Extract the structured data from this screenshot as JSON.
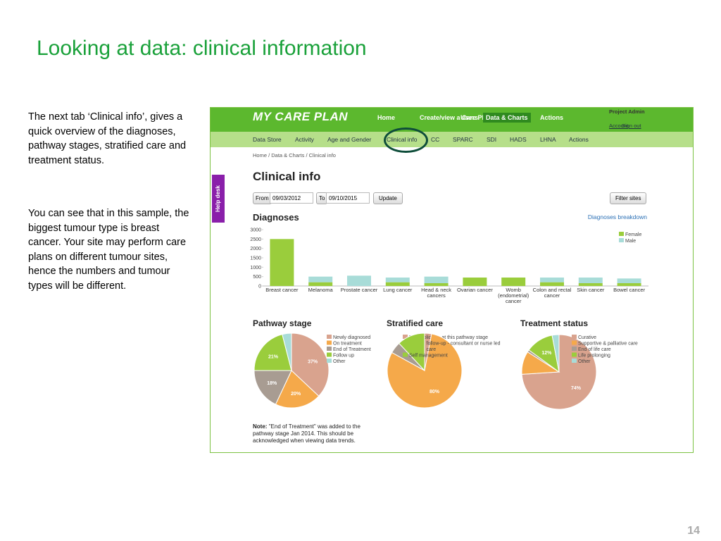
{
  "slide": {
    "title": "Looking at data: clinical information",
    "paragraphs": [
      "The next tab ‘Clinical info’, gives a quick overview of the diagnoses, pathway stages, stratified care and treatment status.",
      "You can see that in this sample, the biggest tumour type is breast cancer. Your site may perform care plans on different tumour sites, hence the numbers and tumour types will be different."
    ],
    "page_number": "14"
  },
  "app": {
    "logo": "MY CARE PLAN",
    "nav": [
      "Home",
      "Create/view a Care Plan",
      "Users",
      "Data & Charts",
      "Actions"
    ],
    "active_nav": "Data & Charts",
    "user": "Project Admin",
    "account_links": [
      "Account",
      "Sign out"
    ],
    "subnav": [
      "Data Store",
      "Activity",
      "Age and Gender",
      "Clinical info",
      "CC",
      "SPARC",
      "SDI",
      "HADS",
      "LHNA",
      "Actions"
    ],
    "breadcrumb": "Home / Data & Charts / Clinical info",
    "heading": "Clinical info",
    "help": "Help desk",
    "from_label": "From",
    "from_date": "09/03/2012",
    "to_label": "To",
    "to_date": "09/10/2015",
    "update": "Update",
    "filter": "Filter sites",
    "note_label": "Note:",
    "note": "\"End of Treatment\" was added to the pathway stage Jan 2014. This should be acknowledged when viewing data trends."
  },
  "chart_data": [
    {
      "type": "bar",
      "title": "Diagnoses",
      "link": "Diagnoses breakdown",
      "stacked": true,
      "categories": [
        "Breast cancer",
        "Melanoma",
        "Prostate cancer",
        "Lung cancer",
        "Head & neck cancers",
        "Ovarian cancer",
        "Womb (endometrial) cancer",
        "Colon and rectal cancer",
        "Skin cancer",
        "Bowel cancer"
      ],
      "series": [
        {
          "name": "Female",
          "color": "#9acd3c",
          "values": [
            2500,
            200,
            0,
            200,
            150,
            450,
            450,
            200,
            150,
            150
          ]
        },
        {
          "name": "Male",
          "color": "#a8dcd8",
          "values": [
            0,
            300,
            550,
            250,
            350,
            0,
            0,
            250,
            300,
            250
          ]
        }
      ],
      "ylim": [
        0,
        3000
      ],
      "yticks": [
        0,
        500,
        1000,
        1500,
        2000,
        2500,
        3000
      ],
      "grid": false
    },
    {
      "type": "pie",
      "title": "Pathway stage",
      "categories": [
        "Newly diagnosed",
        "On treatment",
        "End of Treatment",
        "Follow up",
        "Other"
      ],
      "values": [
        37,
        20,
        18,
        21,
        4
      ],
      "value_labels": [
        "37%",
        "20%",
        "18%",
        "21%",
        null
      ],
      "colors": [
        "#d9a38e",
        "#f5a94a",
        "#a89c92",
        "#9acd3c",
        "#a8dcd8"
      ]
    },
    {
      "type": "pie",
      "title": "Stratified care",
      "categories": [
        "Not applicable at this pathway stage",
        "Clinical follow-up - consultant or nurse led",
        "Shared care",
        "Self management"
      ],
      "values": [
        3,
        80,
        5,
        12
      ],
      "value_labels": [
        null,
        "80%",
        null,
        null
      ],
      "colors": [
        "#d9a38e",
        "#f5a94a",
        "#a89c92",
        "#9acd3c"
      ]
    },
    {
      "type": "pie",
      "title": "Treatment status",
      "categories": [
        "Curative",
        "Supportive & palliative care",
        "End of life care",
        "Life prolonging",
        "Other"
      ],
      "values": [
        74,
        10,
        1,
        12,
        3
      ],
      "value_labels": [
        "74%",
        null,
        null,
        "12%",
        null
      ],
      "colors": [
        "#d9a38e",
        "#f5a94a",
        "#a89c92",
        "#9acd3c",
        "#a8dcd8"
      ]
    }
  ]
}
